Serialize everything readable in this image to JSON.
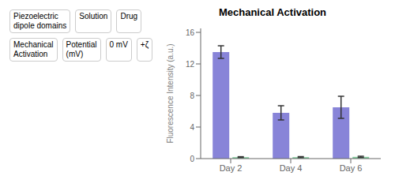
{
  "chart_data": {
    "type": "bar",
    "title": "Mechanical Activation",
    "ylabel": "Fluorescence Intensity (a.u.)",
    "categories": [
      "Day 2",
      "Day 4",
      "Day 6"
    ],
    "series": [
      {
        "color": "#8884d8",
        "values": [
          13.5,
          5.8,
          6.5
        ],
        "errors": [
          0.8,
          0.9,
          1.4
        ]
      },
      {
        "color": "#82ca9d",
        "values": [
          0.18,
          0.18,
          0.22
        ],
        "errors": [
          0.06,
          0.07,
          0.08
        ]
      }
    ],
    "ylim": [
      0,
      16.5
    ],
    "yticks": [
      0,
      4,
      8,
      12,
      16
    ],
    "annotations": [
      "Piezoelectric\ndipole domains",
      "Solution",
      "Drug",
      "Mechanical\nActivation",
      "Potential\n(mV)",
      "0 mV",
      "+ζ"
    ]
  }
}
